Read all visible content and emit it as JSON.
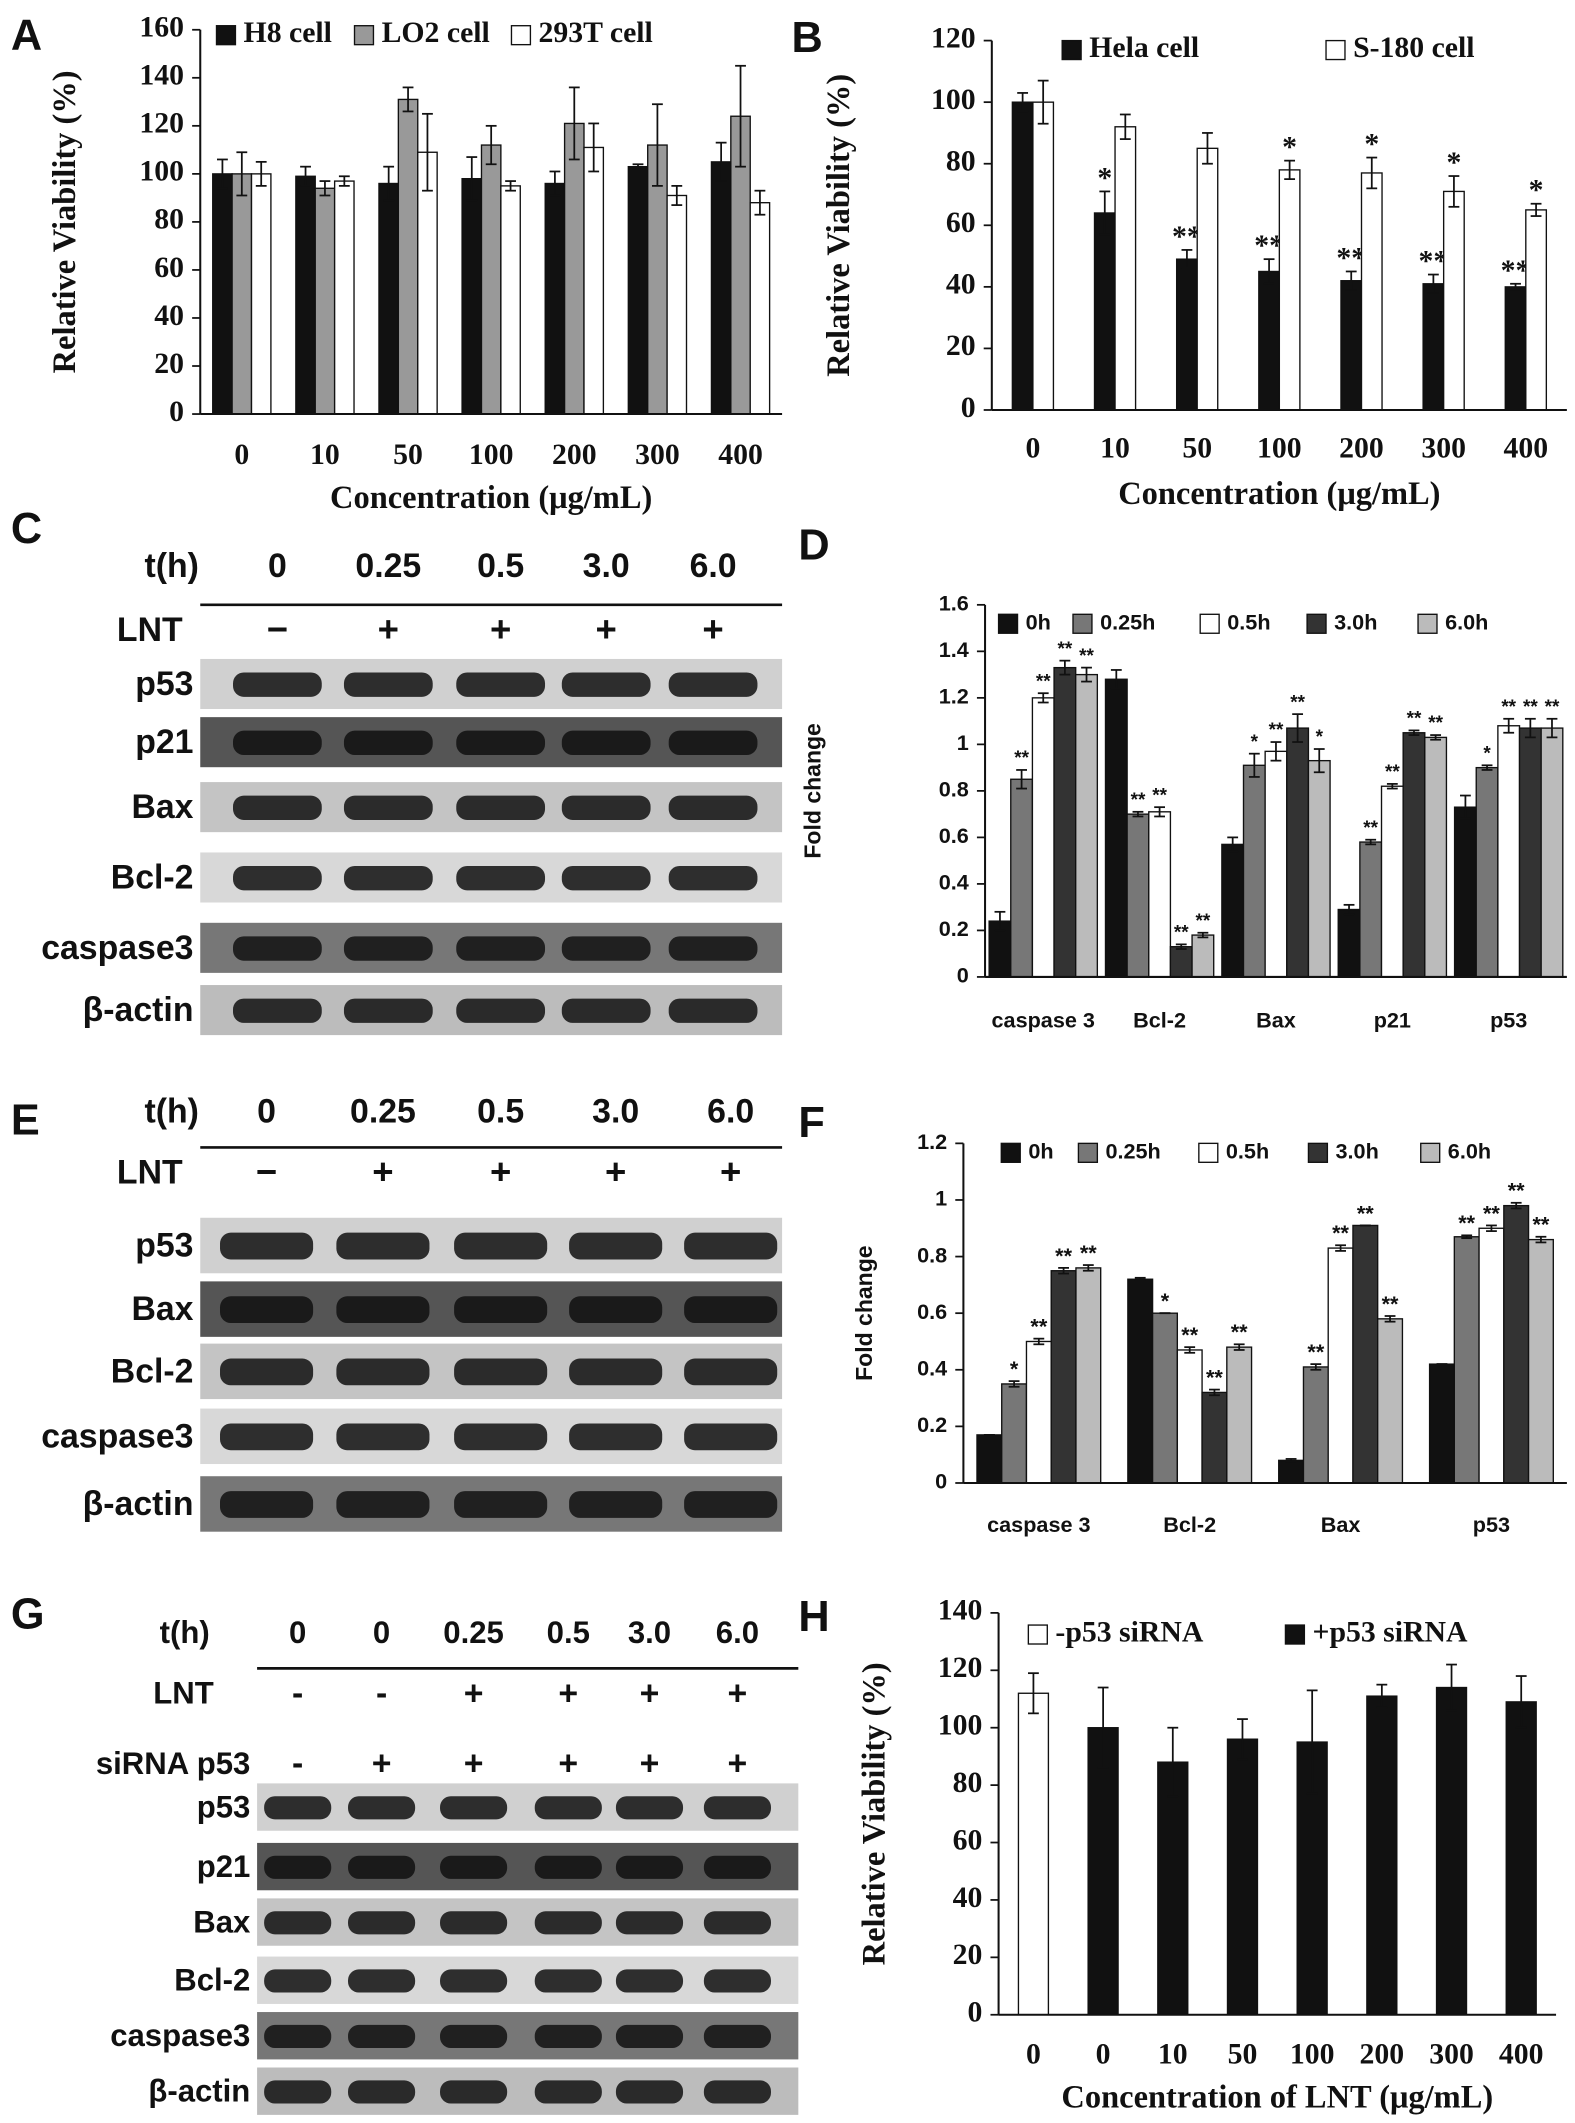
{
  "chart_data": [
    {
      "type": "bar",
      "panel": "A",
      "ylabel": "Relative Viability (%)",
      "xlabel": "Concentration (μg/mL)",
      "categories": [
        "0",
        "10",
        "50",
        "100",
        "200",
        "300",
        "400"
      ],
      "series": [
        {
          "name": "H8 cell",
          "color": "#111111",
          "values": [
            100,
            99,
            96,
            98,
            96,
            103,
            105
          ],
          "errors": [
            6,
            4,
            7,
            9,
            5,
            1,
            8
          ]
        },
        {
          "name": "LO2 cell",
          "color": "#999999",
          "values": [
            100,
            94,
            131,
            112,
            121,
            112,
            124
          ],
          "errors": [
            9,
            3,
            5,
            8,
            15,
            17,
            21
          ]
        },
        {
          "name": "293T cell",
          "color": "#ffffff",
          "values": [
            100,
            97,
            109,
            95,
            111,
            91,
            88
          ],
          "errors": [
            5,
            2,
            16,
            2,
            10,
            4,
            5
          ]
        }
      ],
      "ylim": [
        0,
        160
      ],
      "yticks": [
        0,
        20,
        40,
        60,
        80,
        100,
        120,
        140,
        160
      ]
    },
    {
      "type": "bar",
      "panel": "B",
      "ylabel": "Relative Viability (%)",
      "xlabel": "Concentration (μg/mL)",
      "categories": [
        "0",
        "10",
        "50",
        "100",
        "200",
        "300",
        "400"
      ],
      "series": [
        {
          "name": "Hela cell",
          "color": "#111111",
          "values": [
            100,
            64,
            49,
            45,
            42,
            41,
            40
          ],
          "errors": [
            3,
            7,
            3,
            4,
            3,
            3,
            1
          ],
          "annotations": [
            null,
            "*",
            "**",
            "**",
            "**",
            "**",
            "**"
          ]
        },
        {
          "name": "S-180 cell",
          "color": "#ffffff",
          "values": [
            100,
            92,
            85,
            78,
            77,
            71,
            65
          ],
          "errors": [
            7,
            4,
            5,
            3,
            5,
            5,
            2
          ],
          "annotations": [
            null,
            null,
            null,
            "*",
            "*",
            "*",
            "*"
          ]
        }
      ],
      "ylim": [
        0,
        120
      ],
      "yticks": [
        0,
        20,
        40,
        60,
        80,
        100,
        120
      ]
    },
    {
      "type": "bar",
      "panel": "D",
      "ylabel": "Fold change",
      "categories": [
        "caspase 3",
        "Bcl-2",
        "Bax",
        "p21",
        "p53"
      ],
      "series": [
        {
          "name": "0h",
          "color": "#111111",
          "values": [
            0.24,
            1.28,
            0.57,
            0.29,
            0.73
          ],
          "errors": [
            0.04,
            0.04,
            0.03,
            0.02,
            0.05
          ]
        },
        {
          "name": "0.25h",
          "color": "#777777",
          "values": [
            0.85,
            0.7,
            0.91,
            0.58,
            0.9
          ],
          "errors": [
            0.04,
            0.01,
            0.05,
            0.01,
            0.01
          ],
          "annotations": [
            "**",
            "**",
            "*",
            "**",
            "*"
          ]
        },
        {
          "name": "0.5h",
          "color": "#ffffff",
          "values": [
            1.2,
            0.71,
            0.97,
            0.82,
            1.08
          ],
          "errors": [
            0.02,
            0.02,
            0.04,
            0.01,
            0.03
          ],
          "annotations": [
            "**",
            "**",
            "**",
            "**",
            "**"
          ]
        },
        {
          "name": "3.0h",
          "color": "#333333",
          "values": [
            1.33,
            0.13,
            1.07,
            1.05,
            1.07
          ],
          "errors": [
            0.03,
            0.01,
            0.06,
            0.01,
            0.04
          ],
          "annotations": [
            "**",
            "**",
            "**",
            "**",
            "**"
          ]
        },
        {
          "name": "6.0h",
          "color": "#bbbbbb",
          "values": [
            1.3,
            0.18,
            0.93,
            1.03,
            1.07
          ],
          "errors": [
            0.03,
            0.01,
            0.05,
            0.01,
            0.04
          ],
          "annotations": [
            "**",
            "**",
            "*",
            "**",
            "**"
          ]
        }
      ],
      "ylim": [
        0,
        1.6
      ],
      "yticks": [
        0,
        0.2,
        0.4,
        0.6,
        0.8,
        1,
        1.2,
        1.4,
        1.6
      ]
    },
    {
      "type": "bar",
      "panel": "F",
      "ylabel": "Fold change",
      "categories": [
        "caspase 3",
        "Bcl-2",
        "Bax",
        "p53"
      ],
      "series": [
        {
          "name": "0h",
          "color": "#111111",
          "values": [
            0.17,
            0.72,
            0.08,
            0.42
          ],
          "errors": [
            0,
            0.005,
            0.005,
            0
          ]
        },
        {
          "name": "0.25h",
          "color": "#777777",
          "values": [
            0.35,
            0.6,
            0.41,
            0.87
          ],
          "errors": [
            0.01,
            0,
            0.01,
            0.005
          ],
          "annotations": [
            "*",
            "*",
            "**",
            "**"
          ]
        },
        {
          "name": "0.5h",
          "color": "#ffffff",
          "values": [
            0.5,
            0.47,
            0.83,
            0.9
          ],
          "errors": [
            0.01,
            0.01,
            0.01,
            0.01
          ],
          "annotations": [
            "**",
            "**",
            "**",
            "**"
          ]
        },
        {
          "name": "3.0h",
          "color": "#333333",
          "values": [
            0.75,
            0.32,
            0.91,
            0.98
          ],
          "errors": [
            0.01,
            0.01,
            0,
            0.01
          ],
          "annotations": [
            "**",
            "**",
            "**",
            "**"
          ]
        },
        {
          "name": "6.0h",
          "color": "#bbbbbb",
          "values": [
            0.76,
            0.48,
            0.58,
            0.86
          ],
          "errors": [
            0.01,
            0.01,
            0.01,
            0.01
          ],
          "annotations": [
            "**",
            "**",
            "**",
            "**"
          ]
        }
      ],
      "ylim": [
        0,
        1.2
      ],
      "yticks": [
        0,
        0.2,
        0.4,
        0.6,
        0.8,
        1,
        1.2
      ]
    },
    {
      "type": "bar",
      "panel": "H",
      "ylabel": "Relative Viability (%)",
      "xlabel": "Concentration of LNT (μg/mL)",
      "categories": [
        "0",
        "0",
        "10",
        "50",
        "100",
        "200",
        "300",
        "400"
      ],
      "series": [
        {
          "name": "-p53 siRNA",
          "color": "#ffffff",
          "values": [
            112,
            null,
            null,
            null,
            null,
            null,
            null,
            null
          ],
          "errors": [
            7,
            null,
            null,
            null,
            null,
            null,
            null,
            null
          ]
        },
        {
          "name": "+p53 siRNA",
          "color": "#111111",
          "values": [
            null,
            100,
            88,
            96,
            95,
            111,
            114,
            109
          ],
          "errors": [
            null,
            14,
            12,
            7,
            18,
            4,
            8,
            9
          ]
        }
      ],
      "ylim": [
        0,
        140
      ],
      "yticks": [
        0,
        20,
        40,
        60,
        80,
        100,
        120,
        140
      ]
    }
  ],
  "blots": [
    {
      "panel": "C",
      "header": {
        "label": "t(h)",
        "values": [
          "0",
          "0.25",
          "0.5",
          "3.0",
          "6.0"
        ]
      },
      "treatments": [
        {
          "label": "LNT",
          "values": [
            "−",
            "+",
            "+",
            "+",
            "+"
          ]
        }
      ],
      "proteins": [
        "p53",
        "p21",
        "Bax",
        "Bcl-2",
        "caspase3",
        "β-actin"
      ]
    },
    {
      "panel": "E",
      "header": {
        "label": "t(h)",
        "values": [
          "0",
          "0.25",
          "0.5",
          "3.0",
          "6.0"
        ]
      },
      "treatments": [
        {
          "label": "LNT",
          "values": [
            "−",
            "+",
            "+",
            "+",
            "+"
          ]
        }
      ],
      "proteins": [
        "p53",
        "Bax",
        "Bcl-2",
        "caspase3",
        "β-actin"
      ]
    },
    {
      "panel": "G",
      "header": {
        "label": "t(h)",
        "values": [
          "0",
          "0",
          "0.25",
          "0.5",
          "3.0",
          "6.0"
        ]
      },
      "treatments": [
        {
          "label": "LNT",
          "values": [
            "-",
            "-",
            "+",
            "+",
            "+",
            "+"
          ]
        },
        {
          "label": "siRNA p53",
          "values": [
            "-",
            "+",
            "+",
            "+",
            "+",
            "+"
          ]
        }
      ],
      "proteins": [
        "p53",
        "p21",
        "Bax",
        "Bcl-2",
        "caspase3",
        "β-actin"
      ]
    }
  ]
}
